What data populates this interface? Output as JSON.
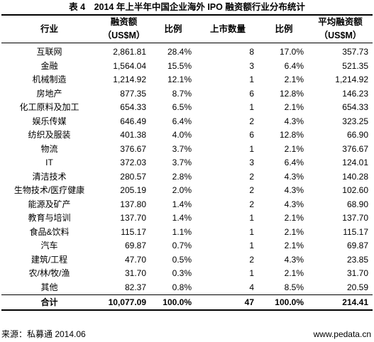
{
  "title": "表 4　2014 年上半年中国企业海外 IPO 融资额行业分布统计",
  "headers": {
    "industry": "行业",
    "amount_1": "融资额",
    "amount_2": "（US$M）",
    "ratio": "比例",
    "listings": "上市数量",
    "ratio2": "比例",
    "avg_1": "平均融资额",
    "avg_2": "（US$M）"
  },
  "rows": [
    {
      "industry": "互联网",
      "amount": "2,861.81",
      "ratio": "28.4%",
      "count": "8",
      "ratio2": "17.0%",
      "avg": "357.73"
    },
    {
      "industry": "金融",
      "amount": "1,564.04",
      "ratio": "15.5%",
      "count": "3",
      "ratio2": "6.4%",
      "avg": "521.35"
    },
    {
      "industry": "机械制造",
      "amount": "1,214.92",
      "ratio": "12.1%",
      "count": "1",
      "ratio2": "2.1%",
      "avg": "1,214.92"
    },
    {
      "industry": "房地产",
      "amount": "877.35",
      "ratio": "8.7%",
      "count": "6",
      "ratio2": "12.8%",
      "avg": "146.23"
    },
    {
      "industry": "化工原料及加工",
      "amount": "654.33",
      "ratio": "6.5%",
      "count": "1",
      "ratio2": "2.1%",
      "avg": "654.33"
    },
    {
      "industry": "娱乐传媒",
      "amount": "646.49",
      "ratio": "6.4%",
      "count": "2",
      "ratio2": "4.3%",
      "avg": "323.25"
    },
    {
      "industry": "纺织及服装",
      "amount": "401.38",
      "ratio": "4.0%",
      "count": "6",
      "ratio2": "12.8%",
      "avg": "66.90"
    },
    {
      "industry": "物流",
      "amount": "376.67",
      "ratio": "3.7%",
      "count": "1",
      "ratio2": "2.1%",
      "avg": "376.67"
    },
    {
      "industry": "IT",
      "amount": "372.03",
      "ratio": "3.7%",
      "count": "3",
      "ratio2": "6.4%",
      "avg": "124.01"
    },
    {
      "industry": "清洁技术",
      "amount": "280.57",
      "ratio": "2.8%",
      "count": "2",
      "ratio2": "4.3%",
      "avg": "140.28"
    },
    {
      "industry": "生物技术/医疗健康",
      "amount": "205.19",
      "ratio": "2.0%",
      "count": "2",
      "ratio2": "4.3%",
      "avg": "102.60"
    },
    {
      "industry": "能源及矿产",
      "amount": "137.80",
      "ratio": "1.4%",
      "count": "2",
      "ratio2": "4.3%",
      "avg": "68.90"
    },
    {
      "industry": "教育与培训",
      "amount": "137.70",
      "ratio": "1.4%",
      "count": "1",
      "ratio2": "2.1%",
      "avg": "137.70"
    },
    {
      "industry": "食品&饮料",
      "amount": "115.17",
      "ratio": "1.1%",
      "count": "1",
      "ratio2": "2.1%",
      "avg": "115.17"
    },
    {
      "industry": "汽车",
      "amount": "69.87",
      "ratio": "0.7%",
      "count": "1",
      "ratio2": "2.1%",
      "avg": "69.87"
    },
    {
      "industry": "建筑/工程",
      "amount": "47.70",
      "ratio": "0.5%",
      "count": "2",
      "ratio2": "4.3%",
      "avg": "23.85"
    },
    {
      "industry": "农/林/牧/渔",
      "amount": "31.70",
      "ratio": "0.3%",
      "count": "1",
      "ratio2": "2.1%",
      "avg": "31.70"
    },
    {
      "industry": "其他",
      "amount": "82.37",
      "ratio": "0.8%",
      "count": "4",
      "ratio2": "8.5%",
      "avg": "20.59"
    }
  ],
  "total": {
    "industry": "合计",
    "amount": "10,077.09",
    "ratio": "100.0%",
    "count": "47",
    "ratio2": "100.0%",
    "avg": "214.41"
  },
  "footer": {
    "source": "来源：私募通 2014.06",
    "website": "www.pedata.cn"
  }
}
